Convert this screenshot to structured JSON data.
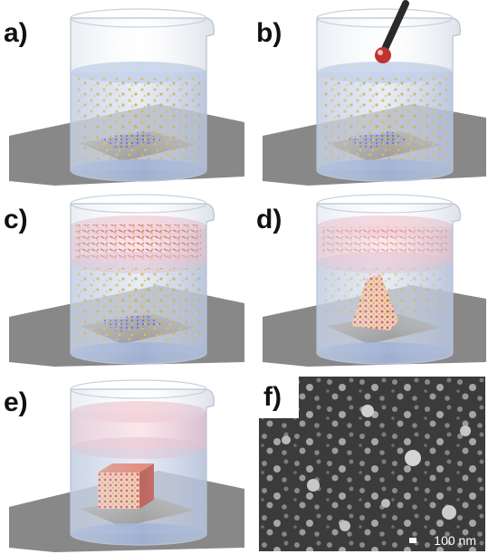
{
  "panels": [
    {
      "label": "a)"
    },
    {
      "label": "b)"
    },
    {
      "label": "c)"
    },
    {
      "label": "d)"
    },
    {
      "label": "e)"
    },
    {
      "label": "f)"
    }
  ],
  "sem": {
    "scale_label": "100 nm"
  },
  "colors": {
    "glass": "#cdd6e3",
    "water": "#7f98c9",
    "precursor_layer": "#e8a3b5",
    "surface": "#8c8c8c",
    "gold_particle": "#c9a21b",
    "red_ligand": "#c0332f",
    "lattice": "#3a46c7"
  }
}
